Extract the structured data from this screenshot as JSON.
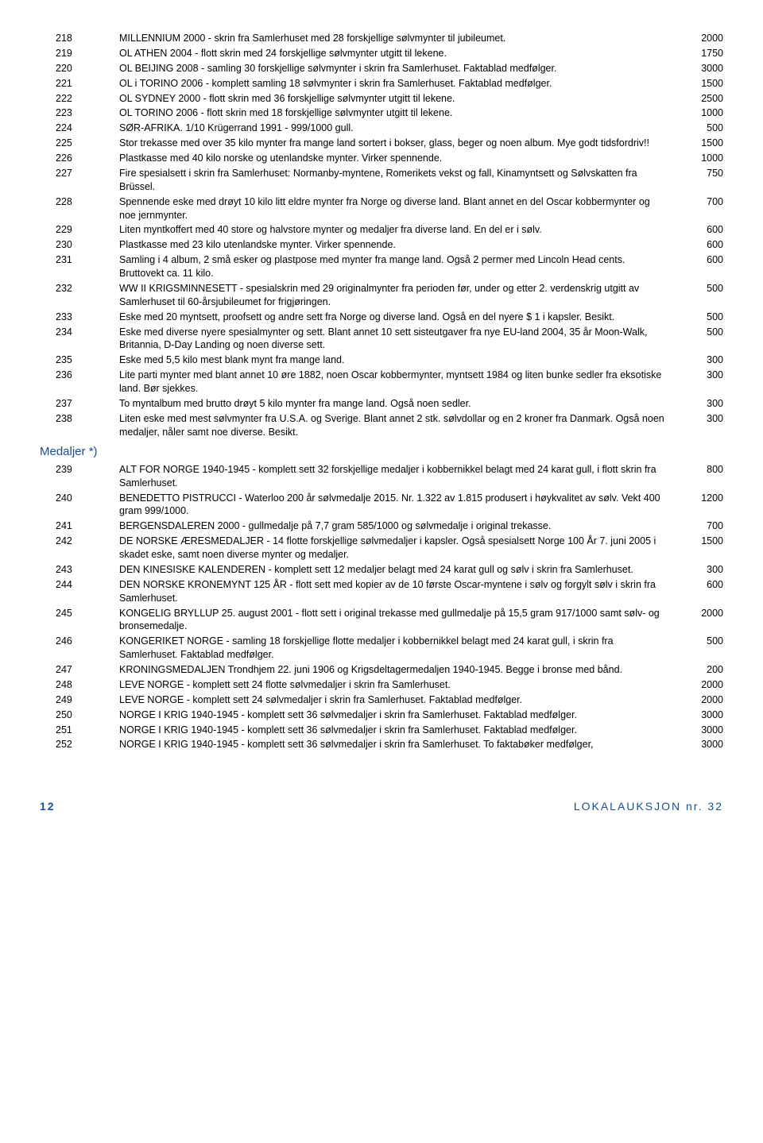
{
  "rows": [
    {
      "lot": "218",
      "desc": "MILLENNIUM 2000 - skrin fra Samlerhuset med 28 forskjellige sølvmynter til jubileumet.",
      "price": "2000"
    },
    {
      "lot": "219",
      "desc": "OL ATHEN 2004 - flott skrin med 24 forskjellige sølvmynter utgitt til lekene.",
      "price": "1750"
    },
    {
      "lot": "220",
      "desc": "OL BEIJING 2008 - samling 30 forskjellige sølvmynter i skrin fra Samlerhuset. Faktablad medfølger.",
      "price": "3000"
    },
    {
      "lot": "221",
      "desc": "OL i TORINO 2006 - komplett samling 18 sølvmynter i skrin fra Samlerhuset. Faktablad medfølger.",
      "price": "1500"
    },
    {
      "lot": "222",
      "desc": "OL SYDNEY 2000 - flott skrin med 36 forskjellige sølvmynter utgitt til lekene.",
      "price": "2500"
    },
    {
      "lot": "223",
      "desc": "OL TORINO 2006 - flott skrin med 18 forskjellige sølvmynter utgitt til lekene.",
      "price": "1000"
    },
    {
      "lot": "224",
      "desc": "SØR-AFRIKA. 1/10 Krügerrand 1991 - 999/1000 gull.",
      "price": "500"
    },
    {
      "lot": "225",
      "desc": "Stor trekasse med over 35 kilo mynter fra mange land sortert i bokser, glass, beger og noen album. Mye godt tidsfordriv!!",
      "price": "1500"
    },
    {
      "lot": "226",
      "desc": "Plastkasse med 40 kilo norske og utenlandske mynter. Virker spennende.",
      "price": "1000"
    },
    {
      "lot": "227",
      "desc": "Fire spesialsett i skrin fra Samlerhuset: Normanby-myntene, Romerikets vekst og fall, Kinamyntsett og Sølvskatten fra Brüssel.",
      "price": "750"
    },
    {
      "lot": "228",
      "desc": "Spennende eske med drøyt 10 kilo litt eldre mynter fra Norge og diverse land. Blant annet en del Oscar kobbermynter og noe jernmynter.",
      "price": "700"
    },
    {
      "lot": "229",
      "desc": "Liten myntkoffert med 40 store og halvstore mynter og medaljer fra diverse land. En del er i sølv.",
      "price": "600"
    },
    {
      "lot": "230",
      "desc": "Plastkasse med 23 kilo utenlandske mynter. Virker spennende.",
      "price": "600"
    },
    {
      "lot": "231",
      "desc": "Samling i 4 album, 2 små esker og plastpose med mynter fra mange land. Også 2 permer med Lincoln Head cents. Bruttovekt ca. 11 kilo.",
      "price": "600"
    },
    {
      "lot": "232",
      "desc": "WW II KRIGSMINNESETT - spesialskrin med 29 originalmynter fra perioden før, under og etter 2. verdenskrig utgitt av Samlerhuset til 60-årsjubileumet for frigjøringen.",
      "price": "500"
    },
    {
      "lot": "233",
      "desc": "Eske med 20 myntsett, proofsett og andre sett fra Norge og diverse land. Også en del nyere $ 1 i kapsler. Besikt.",
      "price": "500"
    },
    {
      "lot": "234",
      "desc": "Eske med diverse nyere spesialmynter og sett. Blant annet 10 sett sisteutgaver fra nye EU-land 2004, 35 år Moon-Walk, Britannia, D-Day Landing og noen diverse sett.",
      "price": "500"
    },
    {
      "lot": "235",
      "desc": "Eske med 5,5 kilo mest blank mynt fra mange land.",
      "price": "300"
    },
    {
      "lot": "236",
      "desc": "Lite parti mynter med blant annet 10 øre 1882, noen Oscar kobbermynter, myntsett 1984 og liten bunke sedler fra eksotiske land. Bør sjekkes.",
      "price": "300"
    },
    {
      "lot": "237",
      "desc": "To myntalbum med brutto drøyt 5 kilo mynter fra mange land. Også noen sedler.",
      "price": "300"
    },
    {
      "lot": "238",
      "desc": "Liten eske med mest sølvmynter fra U.S.A. og Sverige. Blant annet 2 stk. sølvdollar og en 2 kroner fra Danmark. Også noen medaljer, nåler samt noe diverse. Besikt.",
      "price": "300"
    }
  ],
  "section": "Medaljer *)",
  "rows2": [
    {
      "lot": "239",
      "desc": "ALT FOR NORGE 1940-1945 - komplett sett 32 forskjellige medaljer i kobbernikkel belagt med 24 karat gull, i flott skrin fra Samlerhuset.",
      "price": "800"
    },
    {
      "lot": "240",
      "desc": "BENEDETTO PISTRUCCI - Waterloo 200 år sølvmedalje 2015. Nr. 1.322 av 1.815 produsert i høykvalitet av sølv. Vekt 400 gram 999/1000.",
      "price": "1200"
    },
    {
      "lot": "241",
      "desc": "BERGENSDALEREN 2000 - gullmedalje på 7,7 gram 585/1000 og sølvmedalje i original trekasse.",
      "price": "700"
    },
    {
      "lot": "242",
      "desc": "DE NORSKE ÆRESMEDALJER - 14 flotte forskjellige sølvmedaljer i kapsler. Også spesialsett Norge 100 År 7. juni 2005 i skadet eske, samt noen diverse mynter og medaljer.",
      "price": "1500"
    },
    {
      "lot": "243",
      "desc": "DEN KINESISKE KALENDEREN - komplett sett 12 medaljer belagt med 24 karat gull og sølv i skrin fra Samlerhuset.",
      "price": "300"
    },
    {
      "lot": "244",
      "desc": "DEN NORSKE KRONEMYNT 125 ÅR - flott sett med kopier av de 10 første Oscar-myntene i sølv og forgylt sølv i skrin fra Samlerhuset.",
      "price": "600"
    },
    {
      "lot": "245",
      "desc": "KONGELIG BRYLLUP 25. august 2001 - flott sett i original trekasse med gullmedalje på 15,5 gram 917/1000 samt sølv- og bronsemedalje.",
      "price": "2000"
    },
    {
      "lot": "246",
      "desc": "KONGERIKET NORGE - samling 18 forskjellige flotte medaljer i kobbernikkel belagt med 24 karat gull, i skrin fra Samlerhuset. Faktablad medfølger.",
      "price": "500"
    },
    {
      "lot": "247",
      "desc": "KRONINGSMEDALJEN Trondhjem 22. juni 1906 og Krigsdeltagermedaljen 1940-1945. Begge i bronse med bånd.",
      "price": "200"
    },
    {
      "lot": "248",
      "desc": "LEVE NORGE - komplett sett 24 flotte sølvmedaljer i skrin fra Samlerhuset.",
      "price": "2000"
    },
    {
      "lot": "249",
      "desc": "LEVE NORGE - komplett sett 24 sølvmedaljer i skrin fra Samlerhuset. Faktablad medfølger.",
      "price": "2000"
    },
    {
      "lot": "250",
      "desc": "NORGE I KRIG 1940-1945 - komplett sett 36 sølvmedaljer i skrin fra Samlerhuset. Faktablad medfølger.",
      "price": "3000"
    },
    {
      "lot": "251",
      "desc": "NORGE I KRIG 1940-1945 - komplett sett 36 sølvmedaljer i skrin fra Samlerhuset. Faktablad medfølger.",
      "price": "3000"
    },
    {
      "lot": "252",
      "desc": "NORGE I KRIG 1940-1945 - komplett sett 36 sølvmedaljer i skrin fra Samlerhuset. To faktabøker medfølger,",
      "price": "3000"
    }
  ],
  "footer": {
    "page": "12",
    "title": "LOKALAUKSJON nr. 32"
  }
}
